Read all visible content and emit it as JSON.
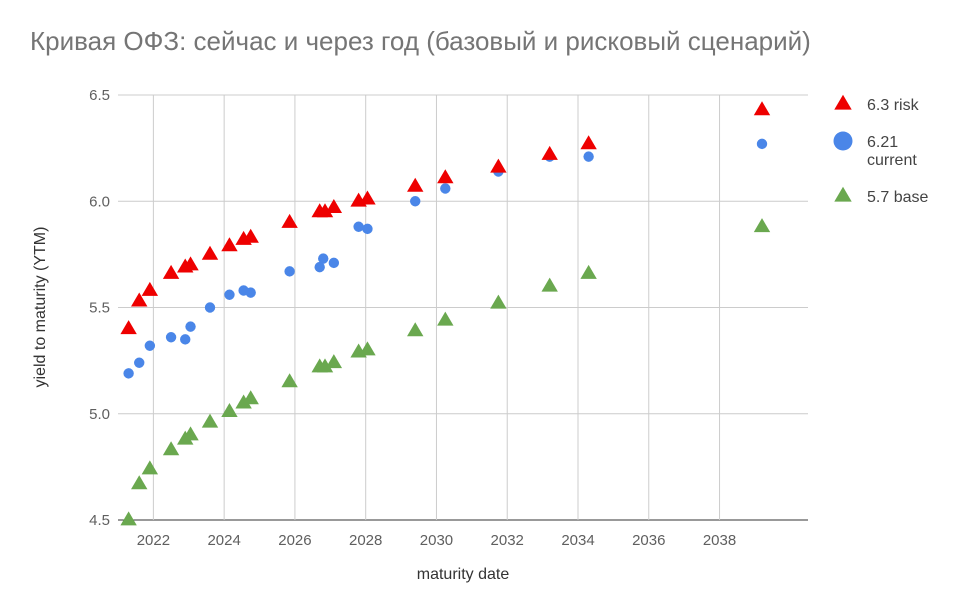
{
  "chart_data": {
    "type": "scatter",
    "title": "Кривая ОФЗ: сейчас и через год (базовый и рисковый сценарий)",
    "xlabel": "maturity date",
    "ylabel": "yield to maturity (YTM)",
    "xlim": [
      2021,
      2040.5
    ],
    "ylim": [
      4.5,
      6.5
    ],
    "x_ticks": [
      "2022",
      "2024",
      "2026",
      "2028",
      "2030",
      "2032",
      "2034",
      "2036",
      "2038"
    ],
    "y_ticks": [
      "4.5",
      "5.0",
      "5.5",
      "6.0",
      "6.5"
    ],
    "grid": true,
    "legend_position": "right",
    "series": [
      {
        "name": "6.3 risk",
        "marker": "triangle",
        "color": "#ee0000",
        "points": [
          [
            2021.3,
            5.4
          ],
          [
            2021.6,
            5.53
          ],
          [
            2021.9,
            5.58
          ],
          [
            2022.5,
            5.66
          ],
          [
            2022.9,
            5.69
          ],
          [
            2023.05,
            5.7
          ],
          [
            2023.6,
            5.75
          ],
          [
            2024.15,
            5.79
          ],
          [
            2024.55,
            5.82
          ],
          [
            2024.75,
            5.83
          ],
          [
            2025.85,
            5.9
          ],
          [
            2026.7,
            5.95
          ],
          [
            2026.85,
            5.95
          ],
          [
            2027.1,
            5.97
          ],
          [
            2027.8,
            6.0
          ],
          [
            2028.05,
            6.01
          ],
          [
            2029.4,
            6.07
          ],
          [
            2030.25,
            6.11
          ],
          [
            2031.75,
            6.16
          ],
          [
            2033.2,
            6.22
          ],
          [
            2034.3,
            6.27
          ],
          [
            2039.2,
            6.43
          ]
        ]
      },
      {
        "name": "6.21 current",
        "label_lines": [
          "6.21",
          "current"
        ],
        "marker": "circle",
        "color": "#4a86e8",
        "points": [
          [
            2021.3,
            5.19
          ],
          [
            2021.6,
            5.24
          ],
          [
            2021.9,
            5.32
          ],
          [
            2022.5,
            5.36
          ],
          [
            2022.9,
            5.35
          ],
          [
            2023.05,
            5.41
          ],
          [
            2023.6,
            5.5
          ],
          [
            2024.15,
            5.56
          ],
          [
            2024.55,
            5.58
          ],
          [
            2024.75,
            5.57
          ],
          [
            2025.85,
            5.67
          ],
          [
            2026.7,
            5.69
          ],
          [
            2026.8,
            5.73
          ],
          [
            2027.1,
            5.71
          ],
          [
            2027.8,
            5.88
          ],
          [
            2028.05,
            5.87
          ],
          [
            2029.4,
            6.0
          ],
          [
            2030.25,
            6.06
          ],
          [
            2031.75,
            6.14
          ],
          [
            2033.2,
            6.21
          ],
          [
            2034.3,
            6.21
          ],
          [
            2039.2,
            6.27
          ]
        ]
      },
      {
        "name": "5.7 base",
        "marker": "triangle",
        "color": "#6aa84f",
        "points": [
          [
            2021.3,
            4.5
          ],
          [
            2021.6,
            4.67
          ],
          [
            2021.9,
            4.74
          ],
          [
            2022.5,
            4.83
          ],
          [
            2022.9,
            4.88
          ],
          [
            2023.05,
            4.9
          ],
          [
            2023.6,
            4.96
          ],
          [
            2024.15,
            5.01
          ],
          [
            2024.55,
            5.05
          ],
          [
            2024.75,
            5.07
          ],
          [
            2025.85,
            5.15
          ],
          [
            2026.7,
            5.22
          ],
          [
            2026.85,
            5.22
          ],
          [
            2027.1,
            5.24
          ],
          [
            2027.8,
            5.29
          ],
          [
            2028.05,
            5.3
          ],
          [
            2029.4,
            5.39
          ],
          [
            2030.25,
            5.44
          ],
          [
            2031.75,
            5.52
          ],
          [
            2033.2,
            5.6
          ],
          [
            2034.3,
            5.66
          ],
          [
            2039.2,
            5.88
          ]
        ]
      }
    ]
  }
}
